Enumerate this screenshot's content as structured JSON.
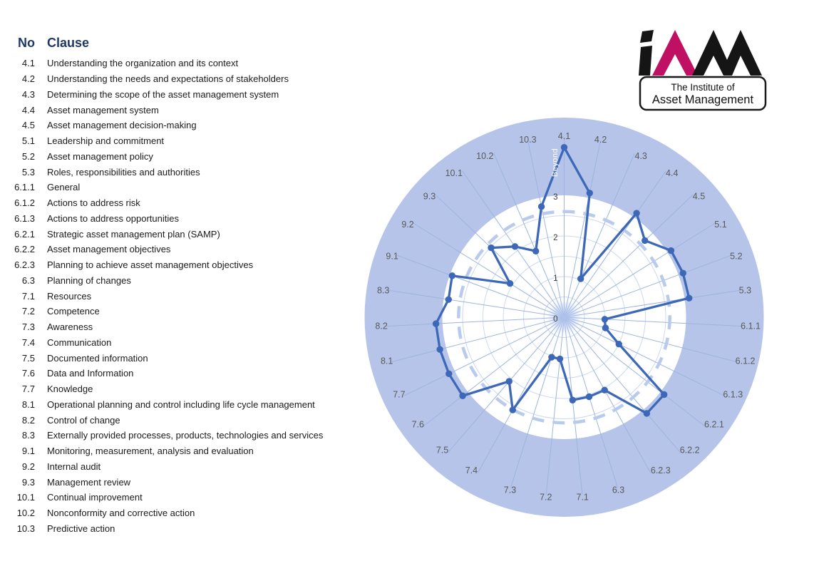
{
  "table": {
    "headers": {
      "no": "No",
      "clause": "Clause"
    },
    "rows": [
      {
        "no": "4.1",
        "clause": "Understanding the organization and its context"
      },
      {
        "no": "4.2",
        "clause": "Understanding the needs and expectations of stakeholders"
      },
      {
        "no": "4.3",
        "clause": "Determining the scope of the asset management system"
      },
      {
        "no": "4.4",
        "clause": "Asset management system"
      },
      {
        "no": "4.5",
        "clause": "Asset management decision-making"
      },
      {
        "no": "5.1",
        "clause": "Leadership and commitment"
      },
      {
        "no": "5.2",
        "clause": "Asset management policy"
      },
      {
        "no": "5.3",
        "clause": "Roles, responsibilities and authorities"
      },
      {
        "no": "6.1.1",
        "clause": "General"
      },
      {
        "no": "6.1.2",
        "clause": "Actions to address risk"
      },
      {
        "no": "6.1.3",
        "clause": "Actions to address opportunities"
      },
      {
        "no": "6.2.1",
        "clause": "Strategic asset management plan (SAMP)"
      },
      {
        "no": "6.2.2",
        "clause": "Asset management objectives"
      },
      {
        "no": "6.2.3",
        "clause": "Planning to achieve asset management objectives"
      },
      {
        "no": "6.3",
        "clause": "Planning of changes"
      },
      {
        "no": "7.1",
        "clause": "Resources"
      },
      {
        "no": "7.2",
        "clause": "Competence"
      },
      {
        "no": "7.3",
        "clause": "Awareness"
      },
      {
        "no": "7.4",
        "clause": "Communication"
      },
      {
        "no": "7.5",
        "clause": "Documented information"
      },
      {
        "no": "7.6",
        "clause": "Data and Information"
      },
      {
        "no": "7.7",
        "clause": "Knowledge"
      },
      {
        "no": "8.1",
        "clause": "Operational planning and control including life cycle management"
      },
      {
        "no": "8.2",
        "clause": "Control of change"
      },
      {
        "no": "8.3",
        "clause": "Externally provided processes, products, technologies and services"
      },
      {
        "no": "9.1",
        "clause": "Monitoring, measurement, analysis and evaluation"
      },
      {
        "no": "9.2",
        "clause": "Internal audit"
      },
      {
        "no": "9.3",
        "clause": "Management review"
      },
      {
        "no": "10.1",
        "clause": "Continual improvement"
      },
      {
        "no": "10.2",
        "clause": "Nonconformity and corrective action"
      },
      {
        "no": "10.3",
        "clause": "Predictive action"
      }
    ]
  },
  "logo": {
    "line1": "The Institute of",
    "line2": "Asset Management",
    "magenta": "#c01064",
    "black": "#151515"
  },
  "chart_data": {
    "type": "radar",
    "categories": [
      "4.1",
      "4.2",
      "4.3",
      "4.4",
      "4.5",
      "5.1",
      "5.2",
      "5.3",
      "6.1.1",
      "6.1.2",
      "6.1.3",
      "6.2.1",
      "6.2.2",
      "6.2.3",
      "6.3",
      "7.1",
      "7.2",
      "7.3",
      "7.4",
      "7.5",
      "7.6",
      "7.7",
      "8.1",
      "8.2",
      "8.3",
      "9.1",
      "9.2",
      "9.3",
      "10.1",
      "10.2",
      "10.3"
    ],
    "values": [
      4.18,
      3.12,
      1.03,
      3.12,
      2.74,
      3.1,
      3.12,
      3.11,
      1.0,
      1.05,
      1.5,
      3.11,
      3.12,
      2.05,
      2.05,
      2.05,
      1.03,
      1.03,
      2.61,
      2.08,
      3.16,
      3.16,
      3.16,
      3.16,
      2.88,
      2.94,
      1.57,
      2.48,
      2.12,
      1.77,
      2.78
    ],
    "radial_ticks": [
      0,
      1,
      2,
      3
    ],
    "rings_minor": [
      0.5,
      1,
      1.5,
      2,
      2.5
    ],
    "target_ring": 2.6,
    "white_zone_max": 3,
    "outer_edge": 4.9,
    "beyond_label": "Beyond",
    "grid": true,
    "legend_position": "none",
    "colors": {
      "band": "#b5c4e8",
      "spoke": "#9db4e0",
      "ring": "#ccd9f1",
      "dashed": "#b8cbee",
      "line": "#3d68b8",
      "marker": "#3d68b8",
      "category_label": "#595959",
      "tick_label": "#404040",
      "beyond_text": "#ffffff",
      "center_blob": "#b0c3ec"
    }
  }
}
